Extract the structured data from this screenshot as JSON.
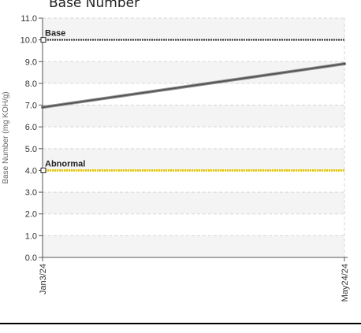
{
  "chart_data": {
    "type": "line",
    "title": "Base Number",
    "ylabel": "Base Number (mg KOH/g)",
    "xlabel": "",
    "ylim": [
      0,
      11
    ],
    "y_ticks": [
      "0.0",
      "1.0",
      "2.0",
      "3.0",
      "4.0",
      "5.0",
      "6.0",
      "7.0",
      "8.0",
      "9.0",
      "10.0",
      "11.0"
    ],
    "x_categories": [
      "Jan3/24",
      "May24/24"
    ],
    "series": [
      {
        "values": [
          6.9,
          8.9
        ],
        "color": "#555555"
      }
    ],
    "reference_lines": [
      {
        "name": "Base",
        "value": 10.0,
        "color": "#333333"
      },
      {
        "name": "Abnormal",
        "value": 4.0,
        "color": "#e8c800"
      }
    ],
    "grid": true
  }
}
